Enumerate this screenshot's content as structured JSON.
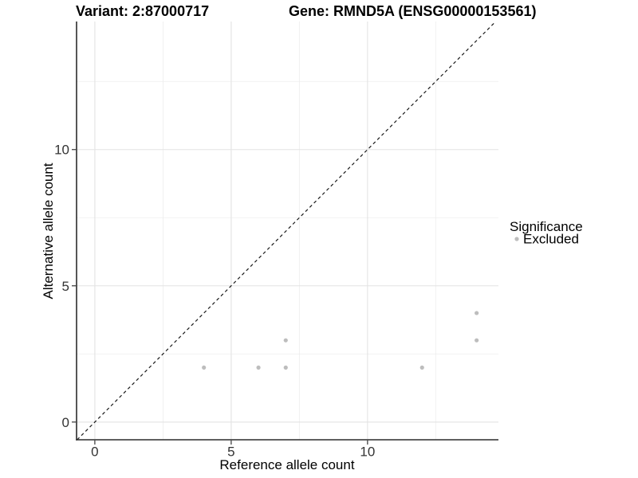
{
  "figure": {
    "background": "#ffffff"
  },
  "chart_data": {
    "type": "scatter",
    "titles": {
      "left": "Variant: 2:87000717",
      "right": "Gene: RMND5A (ENSG00000153561)"
    },
    "xlabel": "Reference allele count",
    "ylabel": "Alternative allele count",
    "xlim": [
      -0.67,
      14.8
    ],
    "ylim": [
      -0.65,
      14.7
    ],
    "x_major_ticks": [
      0,
      5,
      10
    ],
    "y_major_ticks": [
      0,
      5,
      10
    ],
    "x_minor_gridlines": [
      2.5,
      7.5,
      12.5
    ],
    "y_minor_gridlines": [
      2.5,
      7.5,
      12.5
    ],
    "grid": "major and minor gridlines, light gray, no panel border, black left/bottom axis lines",
    "reference_line": {
      "equation": "y = x",
      "style": "dashed",
      "color": "#1a1a1a"
    },
    "series": [
      {
        "name": "Excluded",
        "color": "#bdbdbd",
        "marker": "circle",
        "points": [
          {
            "x": 4,
            "y": 2
          },
          {
            "x": 6,
            "y": 2
          },
          {
            "x": 7,
            "y": 2
          },
          {
            "x": 7,
            "y": 3
          },
          {
            "x": 12,
            "y": 2
          },
          {
            "x": 14,
            "y": 3
          },
          {
            "x": 14,
            "y": 4
          }
        ]
      }
    ],
    "legend": {
      "title": "Significance",
      "position": "right",
      "items": [
        {
          "label": "Excluded",
          "color": "#bdbdbd",
          "marker": "circle"
        }
      ]
    }
  },
  "style": {
    "grid_major_color": "#e3e3e3",
    "grid_minor_color": "#ededed",
    "axis_color": "#2b2b2b",
    "tick_color": "#333333",
    "tick_label_color": "#333333",
    "text_color": "#000000",
    "point_color": "#bdbdbd"
  }
}
